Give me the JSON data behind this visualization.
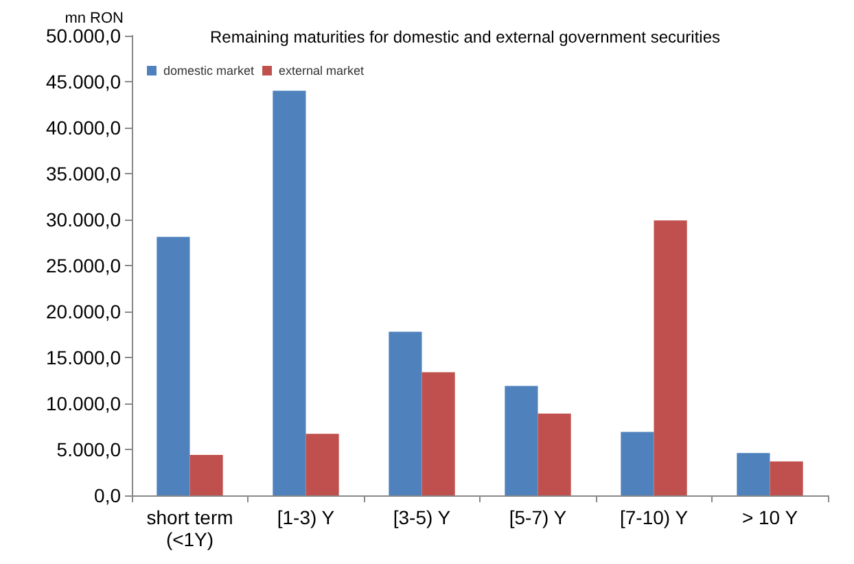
{
  "chart_data": {
    "type": "bar",
    "title": "Remaining maturities for domestic and external government securities",
    "ylabel": "mn RON",
    "categories": [
      "short term (<1Y)",
      "[1-3) Y",
      "[3-5) Y",
      "[5-7) Y",
      "[7-10) Y",
      "> 10 Y"
    ],
    "series": [
      {
        "name": "domestic market",
        "color": "#4f81bd",
        "values": [
          28100,
          44000,
          17800,
          11900,
          6900,
          4600
        ]
      },
      {
        "name": "external market",
        "color": "#c0504d",
        "values": [
          4400,
          6700,
          13400,
          8900,
          29900,
          3700
        ]
      }
    ],
    "ylim": [
      0,
      50000
    ],
    "yticks": [
      {
        "value": 0,
        "label": "0,0"
      },
      {
        "value": 5000,
        "label": "5.000,0"
      },
      {
        "value": 10000,
        "label": "10.000,0"
      },
      {
        "value": 15000,
        "label": "15.000,0"
      },
      {
        "value": 20000,
        "label": "20.000,0"
      },
      {
        "value": 25000,
        "label": "25.000,0"
      },
      {
        "value": 30000,
        "label": "30.000,0"
      },
      {
        "value": 35000,
        "label": "35.000,0"
      },
      {
        "value": 40000,
        "label": "40.000,0"
      },
      {
        "value": 45000,
        "label": "45.000,0"
      },
      {
        "value": 50000,
        "label": "50.000,0"
      }
    ],
    "grid": false,
    "legend": "top left"
  }
}
